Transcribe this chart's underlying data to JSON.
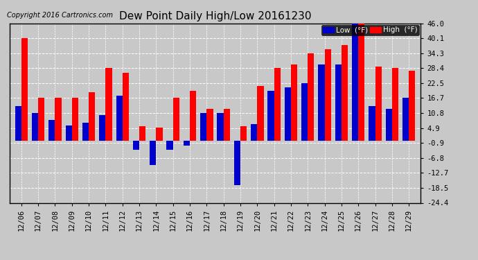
{
  "title": "Dew Point Daily High/Low 20161230",
  "copyright": "Copyright 2016 Cartronics.com",
  "yticks": [
    46.0,
    40.1,
    34.3,
    28.4,
    22.5,
    16.7,
    10.8,
    4.9,
    -0.9,
    -6.8,
    -12.7,
    -18.5,
    -24.4
  ],
  "dates": [
    "12/06",
    "12/07",
    "12/08",
    "12/09",
    "12/10",
    "12/11",
    "12/12",
    "12/13",
    "12/14",
    "12/15",
    "12/16",
    "12/17",
    "12/18",
    "12/19",
    "12/20",
    "12/21",
    "12/22",
    "12/23",
    "12/24",
    "12/25",
    "12/26",
    "12/27",
    "12/28",
    "12/29"
  ],
  "high_values": [
    40.1,
    16.7,
    16.7,
    16.7,
    19.0,
    28.4,
    26.5,
    5.8,
    5.0,
    16.7,
    19.5,
    12.5,
    12.5,
    5.8,
    21.5,
    28.4,
    30.0,
    34.3,
    36.0,
    37.5,
    46.0,
    29.0,
    28.4,
    27.5
  ],
  "low_values": [
    13.5,
    10.8,
    8.0,
    6.0,
    7.0,
    10.0,
    17.5,
    -3.5,
    -9.5,
    -3.5,
    -2.0,
    10.8,
    10.8,
    -17.5,
    6.5,
    19.5,
    21.0,
    22.5,
    30.0,
    30.0,
    46.0,
    13.5,
    12.5,
    16.7
  ],
  "high_color": "#ff0000",
  "low_color": "#0000cc",
  "bg_color": "#c8c8c8",
  "bar_width": 0.38,
  "ylim": [
    -24.4,
    46.0
  ],
  "legend_low_label": "Low  (°F)",
  "legend_high_label": "High  (°F)"
}
